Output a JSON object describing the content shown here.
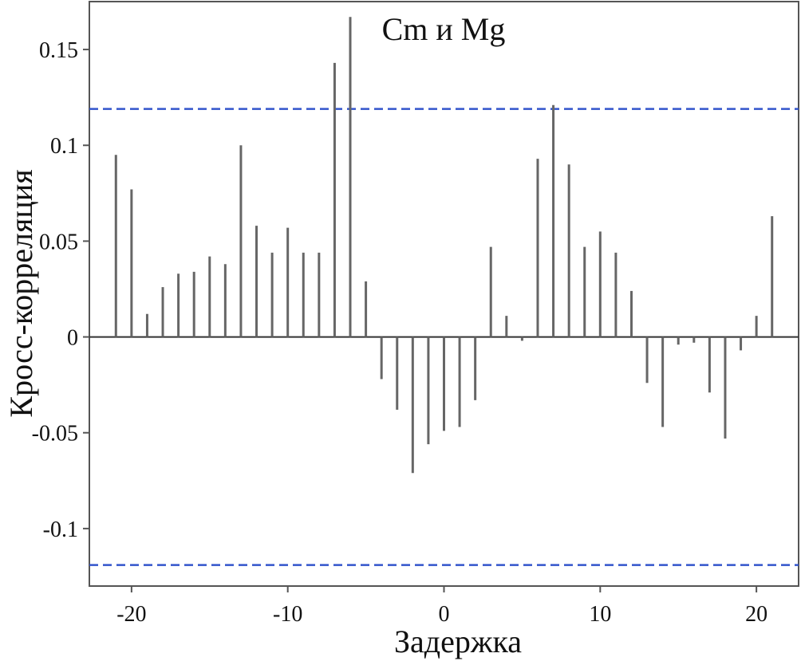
{
  "chart_data": {
    "type": "bar",
    "title": "Cm и Mg",
    "xlabel": "Задержка",
    "ylabel": "Кросс-корреляция",
    "xlim": [
      -22.7,
      22.7
    ],
    "ylim": [
      -0.13,
      0.175
    ],
    "xticks": [
      -20,
      -10,
      0,
      10,
      20
    ],
    "xtick_labels": [
      "-20",
      "-10",
      "0",
      "10",
      "20"
    ],
    "yticks": [
      0.15,
      0.1,
      0.05,
      0,
      -0.05,
      -0.1
    ],
    "ytick_labels": [
      "0.15",
      "0.1",
      "0.05",
      "0",
      "-0.05",
      "-0.1"
    ],
    "confidence_bound": 0.119,
    "grid": false,
    "colors": {
      "bars": "#666666",
      "bounds": "#3355cc",
      "axes": "#555555"
    },
    "x": [
      -21,
      -20,
      -19,
      -18,
      -17,
      -16,
      -15,
      -14,
      -13,
      -12,
      -11,
      -10,
      -9,
      -8,
      -7,
      -6,
      -5,
      -4,
      -3,
      -2,
      -1,
      0,
      1,
      2,
      3,
      4,
      5,
      6,
      7,
      8,
      9,
      10,
      11,
      12,
      13,
      14,
      15,
      16,
      17,
      18,
      19,
      20,
      21
    ],
    "values": [
      0.095,
      0.077,
      0.012,
      0.026,
      0.033,
      0.034,
      0.042,
      0.038,
      0.1,
      0.058,
      0.044,
      0.057,
      0.044,
      0.044,
      0.143,
      0.167,
      0.029,
      -0.022,
      -0.038,
      -0.071,
      -0.056,
      -0.049,
      -0.047,
      -0.033,
      0.047,
      0.011,
      -0.002,
      0.093,
      0.121,
      0.09,
      0.047,
      0.055,
      0.044,
      0.024,
      -0.024,
      -0.047,
      -0.004,
      -0.003,
      -0.029,
      -0.053,
      -0.007,
      0.011,
      0.063
    ]
  }
}
